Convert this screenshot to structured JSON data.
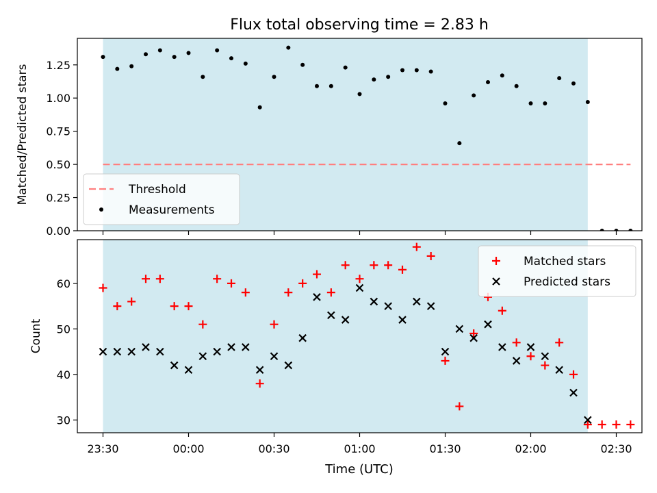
{
  "figure": {
    "title": "Flux total observing time = 2.83 h",
    "xlabel": "Time (UTC)"
  },
  "chart_data": [
    {
      "type": "scatter",
      "ylabel": "Matched/Predicted stars",
      "ylim": [
        0,
        1.45
      ],
      "yticks": [
        0.0,
        0.25,
        0.5,
        0.75,
        1.0,
        1.25
      ],
      "ytick_labels": [
        "0.00",
        "0.25",
        "0.50",
        "0.75",
        "1.00",
        "1.25"
      ],
      "xlim": [
        "23:21",
        "02:39"
      ],
      "xticks": [
        "23:30",
        "00:00",
        "00:30",
        "01:00",
        "01:30",
        "02:00",
        "02:30"
      ],
      "grid": false,
      "shaded_interval": {
        "from": "23:30",
        "to": "02:20",
        "color": "#add8e6"
      },
      "legend": {
        "placement": "lower-left",
        "entries": [
          {
            "label": "Threshold",
            "marker": "dashed-line",
            "color": "#ff7f7f"
          },
          {
            "label": "Measurements",
            "marker": "dot",
            "color": "#000000"
          }
        ]
      },
      "threshold": {
        "name": "Threshold",
        "value": 0.5,
        "from": "23:30",
        "to": "02:35",
        "color": "#ff7f7f"
      },
      "series": [
        {
          "name": "Measurements",
          "color": "#000000",
          "marker": "dot",
          "x": [
            "23:30",
            "23:35",
            "23:40",
            "23:45",
            "23:50",
            "23:55",
            "00:00",
            "00:05",
            "00:10",
            "00:15",
            "00:20",
            "00:25",
            "00:30",
            "00:35",
            "00:40",
            "00:45",
            "00:50",
            "00:55",
            "01:00",
            "01:05",
            "01:10",
            "01:15",
            "01:20",
            "01:25",
            "01:30",
            "01:35",
            "01:40",
            "01:45",
            "01:50",
            "01:55",
            "02:00",
            "02:05",
            "02:10",
            "02:15",
            "02:20",
            "02:25",
            "02:30",
            "02:35"
          ],
          "y": [
            1.31,
            1.22,
            1.24,
            1.33,
            1.36,
            1.31,
            1.34,
            1.16,
            1.36,
            1.3,
            1.26,
            0.93,
            1.16,
            1.38,
            1.25,
            1.09,
            1.09,
            1.23,
            1.03,
            1.14,
            1.16,
            1.21,
            1.21,
            1.2,
            0.96,
            0.66,
            1.02,
            1.12,
            1.17,
            1.09,
            0.96,
            0.96,
            1.15,
            1.11,
            0.97,
            0.0,
            0.0,
            0.0
          ]
        }
      ]
    },
    {
      "type": "scatter",
      "ylabel": "Count",
      "ylim": [
        27.2,
        69.6
      ],
      "yticks": [
        30,
        40,
        50,
        60
      ],
      "ytick_labels": [
        "30",
        "40",
        "50",
        "60"
      ],
      "xlim": [
        "23:21",
        "02:39"
      ],
      "xticks": [
        "23:30",
        "00:00",
        "00:30",
        "01:00",
        "01:30",
        "02:00",
        "02:30"
      ],
      "xtick_labels": [
        "23:30",
        "00:00",
        "00:30",
        "01:00",
        "01:30",
        "02:00",
        "02:30"
      ],
      "grid": false,
      "shaded_interval": {
        "from": "23:30",
        "to": "02:20",
        "color": "#add8e6"
      },
      "legend": {
        "placement": "upper-right",
        "entries": [
          {
            "label": "Matched stars",
            "marker": "plus",
            "color": "#ff0000"
          },
          {
            "label": "Predicted stars",
            "marker": "x",
            "color": "#000000"
          }
        ]
      },
      "series": [
        {
          "name": "Matched stars",
          "color": "#ff0000",
          "marker": "plus",
          "x": [
            "23:30",
            "23:35",
            "23:40",
            "23:45",
            "23:50",
            "23:55",
            "00:00",
            "00:05",
            "00:10",
            "00:15",
            "00:20",
            "00:25",
            "00:30",
            "00:35",
            "00:40",
            "00:45",
            "00:50",
            "00:55",
            "01:00",
            "01:05",
            "01:10",
            "01:15",
            "01:20",
            "01:25",
            "01:30",
            "01:35",
            "01:40",
            "01:45",
            "01:50",
            "01:55",
            "02:00",
            "02:05",
            "02:10",
            "02:15",
            "02:20",
            "02:25",
            "02:30",
            "02:35"
          ],
          "y": [
            59,
            55,
            56,
            61,
            61,
            55,
            55,
            51,
            61,
            60,
            58,
            38,
            51,
            58,
            60,
            62,
            58,
            64,
            61,
            64,
            64,
            63,
            68,
            66,
            43,
            33,
            49,
            57,
            54,
            47,
            44,
            42,
            47,
            40,
            29,
            29,
            29,
            29
          ]
        },
        {
          "name": "Predicted stars",
          "color": "#000000",
          "marker": "x",
          "x": [
            "23:30",
            "23:35",
            "23:40",
            "23:45",
            "23:50",
            "23:55",
            "00:00",
            "00:05",
            "00:10",
            "00:15",
            "00:20",
            "00:25",
            "00:30",
            "00:35",
            "00:40",
            "00:45",
            "00:50",
            "00:55",
            "01:00",
            "01:05",
            "01:10",
            "01:15",
            "01:20",
            "01:25",
            "01:30",
            "01:35",
            "01:40",
            "01:45",
            "01:50",
            "01:55",
            "02:00",
            "02:05",
            "02:10",
            "02:15",
            "02:20"
          ],
          "y": [
            45,
            45,
            45,
            46,
            45,
            42,
            41,
            44,
            45,
            46,
            46,
            41,
            44,
            42,
            48,
            57,
            53,
            52,
            59,
            56,
            55,
            52,
            56,
            55,
            45,
            50,
            48,
            51,
            46,
            43,
            46,
            44,
            41,
            36,
            30
          ]
        }
      ]
    }
  ]
}
